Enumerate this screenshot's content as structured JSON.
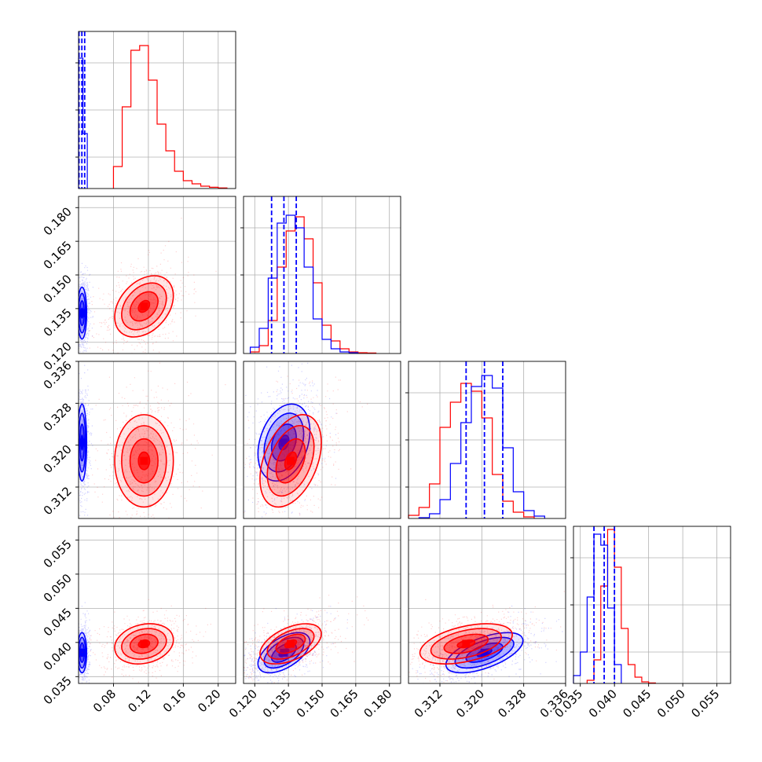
{
  "chart_data": {
    "type": "scatter",
    "title": "",
    "grid": true,
    "legend": "none",
    "series": [
      {
        "color": "#0000ff"
      },
      {
        "color": "#ff0000"
      }
    ],
    "parameters": [
      {
        "range": [
          0.04,
          0.22
        ],
        "ticks": [
          "0.08",
          "0.12",
          "0.16",
          "0.20"
        ]
      },
      {
        "range": [
          0.115,
          0.185
        ],
        "ticks": [
          "0.120",
          "0.135",
          "0.150",
          "0.165",
          "0.180"
        ]
      },
      {
        "range": [
          0.306,
          0.336
        ],
        "ticks": [
          "0.312",
          "0.320",
          "0.328",
          "0.336"
        ]
      },
      {
        "range": [
          0.034,
          0.057
        ],
        "ticks": [
          "0.035",
          "0.040",
          "0.045",
          "0.050",
          "0.055"
        ]
      }
    ],
    "posterior_summary": {
      "blue": {
        "medians": [
          0.044,
          0.133,
          0.3205,
          0.0385
        ],
        "stds": [
          0.0025,
          0.0055,
          0.0035,
          0.0014
        ],
        "rho": {
          "0-1": 0.0,
          "0-2": 0.0,
          "0-3": 0.0,
          "1-2": 0.3,
          "1-3": 0.55,
          "2-3": 0.6
        }
      },
      "red": {
        "medians": [
          0.115,
          0.136,
          0.317,
          0.0398
        ],
        "stds": [
          0.016,
          0.0065,
          0.0042,
          0.0014
        ],
        "rho": {
          "0-1": 0.35,
          "0-2": 0.0,
          "0-3": 0.2,
          "1-2": 0.4,
          "1-3": 0.5,
          "2-3": 0.45
        }
      }
    },
    "quantile_lines": {
      "diag0": [
        0.0405,
        0.0438,
        0.047
      ],
      "diag1": [
        0.1275,
        0.133,
        0.1385
      ],
      "diag2": [
        0.317,
        0.3205,
        0.324
      ],
      "diag3": [
        0.037,
        0.0385,
        0.04
      ]
    },
    "histograms": {
      "diag0": {
        "blue": {
          "edges": [
            0.04,
            0.045,
            0.05
          ],
          "heights": [
            0.83,
            0.35
          ]
        },
        "red": {
          "edges": [
            0.08,
            0.09,
            0.1,
            0.11,
            0.12,
            0.13,
            0.14,
            0.15,
            0.16,
            0.17,
            0.18,
            0.19,
            0.2,
            0.21
          ],
          "heights": [
            0.14,
            0.52,
            0.88,
            0.91,
            0.69,
            0.41,
            0.24,
            0.11,
            0.05,
            0.03,
            0.015,
            0.008,
            0.004
          ]
        }
      },
      "diag1": {
        "blue": {
          "edges": [
            0.118,
            0.122,
            0.126,
            0.13,
            0.134,
            0.138,
            0.142,
            0.146,
            0.15,
            0.154,
            0.158,
            0.162,
            0.166
          ],
          "heights": [
            0.04,
            0.16,
            0.48,
            0.83,
            0.88,
            0.8,
            0.55,
            0.22,
            0.09,
            0.03,
            0.01,
            0.005
          ]
        },
        "red": {
          "edges": [
            0.118,
            0.122,
            0.126,
            0.13,
            0.134,
            0.138,
            0.142,
            0.146,
            0.15,
            0.154,
            0.158,
            0.162,
            0.166,
            0.17,
            0.174
          ],
          "heights": [
            0.01,
            0.05,
            0.21,
            0.55,
            0.78,
            0.87,
            0.73,
            0.45,
            0.18,
            0.08,
            0.03,
            0.01,
            0.005,
            0.003
          ]
        }
      },
      "diag2": {
        "blue": {
          "edges": [
            0.308,
            0.31,
            0.312,
            0.314,
            0.316,
            0.318,
            0.32,
            0.322,
            0.324,
            0.326,
            0.328,
            0.33,
            0.332
          ],
          "heights": [
            0.005,
            0.03,
            0.12,
            0.35,
            0.61,
            0.84,
            0.91,
            0.83,
            0.45,
            0.17,
            0.05,
            0.015
          ]
        },
        "red": {
          "edges": [
            0.306,
            0.308,
            0.31,
            0.312,
            0.314,
            0.316,
            0.318,
            0.32,
            0.322,
            0.324,
            0.326,
            0.328,
            0.33
          ],
          "heights": [
            0.02,
            0.07,
            0.22,
            0.58,
            0.74,
            0.86,
            0.81,
            0.64,
            0.28,
            0.11,
            0.04,
            0.01
          ]
        }
      },
      "diag3": {
        "blue": {
          "edges": [
            0.034,
            0.035,
            0.036,
            0.037,
            0.038,
            0.039,
            0.04,
            0.041
          ],
          "heights": [
            0.05,
            0.2,
            0.55,
            0.95,
            0.88,
            0.48,
            0.12
          ]
        },
        "red": {
          "edges": [
            0.036,
            0.037,
            0.038,
            0.039,
            0.04,
            0.041,
            0.042,
            0.043,
            0.044,
            0.045,
            0.046
          ],
          "heights": [
            0.02,
            0.15,
            0.62,
            0.98,
            0.74,
            0.35,
            0.12,
            0.04,
            0.01,
            0.003
          ]
        }
      }
    }
  }
}
